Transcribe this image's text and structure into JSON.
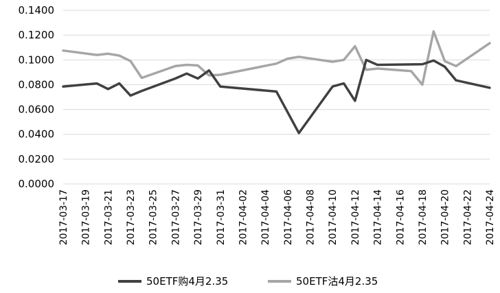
{
  "chart_data": {
    "type": "line",
    "title": "",
    "xlabel": "",
    "ylabel": "",
    "ylim": [
      0,
      0.14
    ],
    "yticks": [
      "0.0000",
      "0.0200",
      "0.0400",
      "0.0600",
      "0.0800",
      "0.1000",
      "0.1200",
      "0.1400"
    ],
    "grid": "horizontal",
    "legend_position": "bottom",
    "x_tick_labels": [
      "2017-03-17",
      "2017-03-19",
      "2017-03-21",
      "2017-03-23",
      "2017-03-25",
      "2017-03-27",
      "2017-03-29",
      "2017-03-31",
      "2017-04-02",
      "2017-04-04",
      "2017-04-06",
      "2017-04-08",
      "2017-04-10",
      "2017-04-12",
      "2017-04-14",
      "2017-04-16",
      "2017-04-18",
      "2017-04-20",
      "2017-04-22",
      "2017-04-24"
    ],
    "series": [
      {
        "name": "50ETF购4月2.35",
        "color": "#404040",
        "points": [
          [
            "2017-03-17",
            0.0785
          ],
          [
            "2017-03-20",
            0.081
          ],
          [
            "2017-03-21",
            0.0765
          ],
          [
            "2017-03-22",
            0.081
          ],
          [
            "2017-03-23",
            0.0712
          ],
          [
            "2017-03-24",
            0.075
          ],
          [
            "2017-03-27",
            0.085
          ],
          [
            "2017-03-28",
            0.089
          ],
          [
            "2017-03-29",
            0.085
          ],
          [
            "2017-03-30",
            0.0915
          ],
          [
            "2017-03-31",
            0.0785
          ],
          [
            "2017-04-05",
            0.0745
          ],
          [
            "2017-04-07",
            0.041
          ],
          [
            "2017-04-10",
            0.0785
          ],
          [
            "2017-04-11",
            0.081
          ],
          [
            "2017-04-12",
            0.067
          ],
          [
            "2017-04-13",
            0.1
          ],
          [
            "2017-04-14",
            0.096
          ],
          [
            "2017-04-18",
            0.0965
          ],
          [
            "2017-04-19",
            0.0995
          ],
          [
            "2017-04-20",
            0.0945
          ],
          [
            "2017-04-21",
            0.0835
          ],
          [
            "2017-04-24",
            0.0775
          ]
        ]
      },
      {
        "name": "50ETF沽4月2.35",
        "color": "#a6a6a6",
        "points": [
          [
            "2017-03-17",
            0.1075
          ],
          [
            "2017-03-20",
            0.104
          ],
          [
            "2017-03-21",
            0.105
          ],
          [
            "2017-03-22",
            0.1035
          ],
          [
            "2017-03-23",
            0.099
          ],
          [
            "2017-03-24",
            0.0855
          ],
          [
            "2017-03-27",
            0.095
          ],
          [
            "2017-03-28",
            0.096
          ],
          [
            "2017-03-29",
            0.0955
          ],
          [
            "2017-03-30",
            0.0875
          ],
          [
            "2017-03-31",
            0.088
          ],
          [
            "2017-04-05",
            0.097
          ],
          [
            "2017-04-06",
            0.101
          ],
          [
            "2017-04-07",
            0.1025
          ],
          [
            "2017-04-10",
            0.0985
          ],
          [
            "2017-04-11",
            0.1
          ],
          [
            "2017-04-12",
            0.111
          ],
          [
            "2017-04-13",
            0.092
          ],
          [
            "2017-04-14",
            0.093
          ],
          [
            "2017-04-17",
            0.091
          ],
          [
            "2017-04-18",
            0.08
          ],
          [
            "2017-04-19",
            0.123
          ],
          [
            "2017-04-20",
            0.099
          ],
          [
            "2017-04-21",
            0.095
          ],
          [
            "2017-04-24",
            0.1135
          ]
        ]
      }
    ]
  }
}
